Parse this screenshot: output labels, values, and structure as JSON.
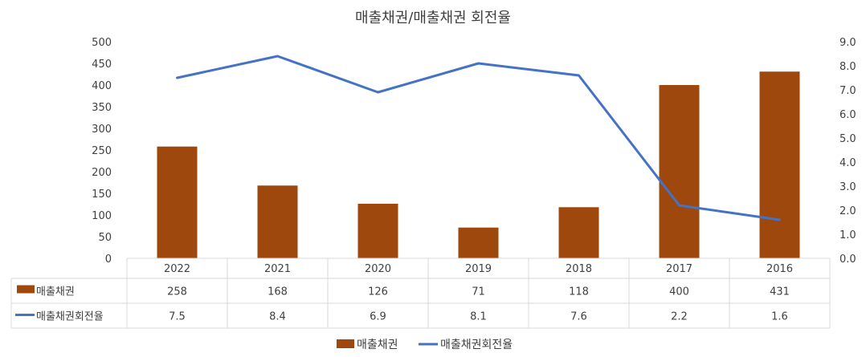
{
  "chart_data": {
    "type": "bar+line",
    "title": "매출채권/매출채권 회전율",
    "categories": [
      "2022",
      "2021",
      "2020",
      "2019",
      "2018",
      "2017",
      "2016"
    ],
    "series": [
      {
        "name": "매출채권",
        "type": "bar",
        "axis": "left",
        "color": "#9E480E",
        "values": [
          258,
          168,
          126,
          71,
          118,
          400,
          431
        ]
      },
      {
        "name": "매출채권회전율",
        "type": "line",
        "axis": "right",
        "color": "#4472C4",
        "values": [
          7.5,
          8.4,
          6.9,
          8.1,
          7.6,
          2.2,
          1.6
        ]
      }
    ],
    "y_left": {
      "min": 0,
      "max": 500,
      "step": 50
    },
    "y_right": {
      "min": 0,
      "max": 9,
      "step": 1,
      "decimals": 1
    },
    "data_table": {
      "rows": [
        {
          "label": "매출채권",
          "values": [
            "258",
            "168",
            "126",
            "71",
            "118",
            "400",
            "431"
          ]
        },
        {
          "label": "매출채권회전율",
          "values": [
            "7.5",
            "8.4",
            "6.9",
            "8.1",
            "7.6",
            "2.2",
            "1.6"
          ]
        }
      ]
    },
    "legend": [
      "매출채권",
      "매출채권회전율"
    ],
    "legend_position": "bottom",
    "gridlines": false
  }
}
